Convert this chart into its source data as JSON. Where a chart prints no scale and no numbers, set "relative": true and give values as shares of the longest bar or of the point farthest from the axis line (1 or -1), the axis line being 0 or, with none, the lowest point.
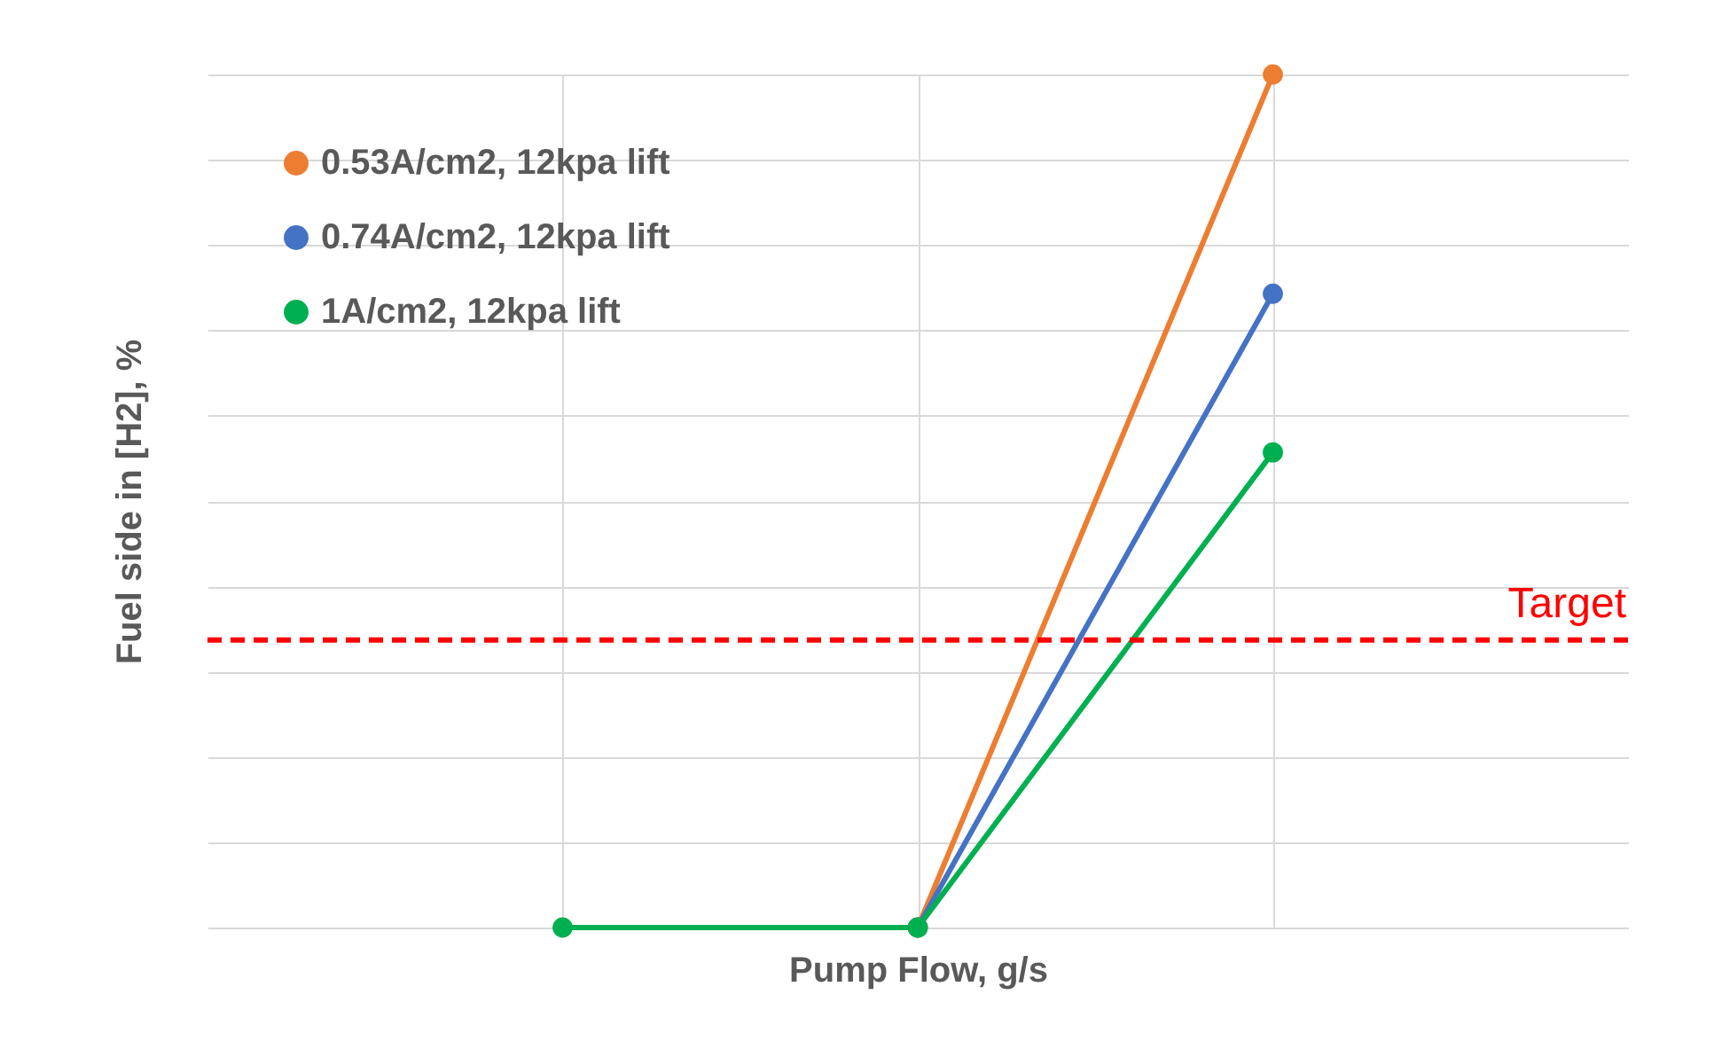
{
  "chart_data": {
    "type": "line",
    "relative": true,
    "xlabel": "Pump Flow, g/s",
    "ylabel": "Fuel side in [H2], %",
    "categories": [
      null,
      null,
      null
    ],
    "series": [
      {
        "name": "0.53A/cm2, 12kpa lift",
        "color": "#ed7d31",
        "values": [
          null,
          0,
          1
        ]
      },
      {
        "name": "0.74A/cm2, 12kpa lift",
        "color": "#4472c4",
        "values": [
          null,
          0,
          0.743
        ]
      },
      {
        "name": "1A/cm2, 12kpa lift",
        "color": "#00b050",
        "values": [
          0,
          0,
          0.557
        ]
      }
    ],
    "ref_lines": [
      {
        "axis": "y",
        "value": 0.337,
        "label": "Target",
        "color": "#ff0000",
        "line_style": "dashed"
      }
    ],
    "grid": true,
    "legend": "top left",
    "marker": "circle",
    "tick_labels": false
  }
}
